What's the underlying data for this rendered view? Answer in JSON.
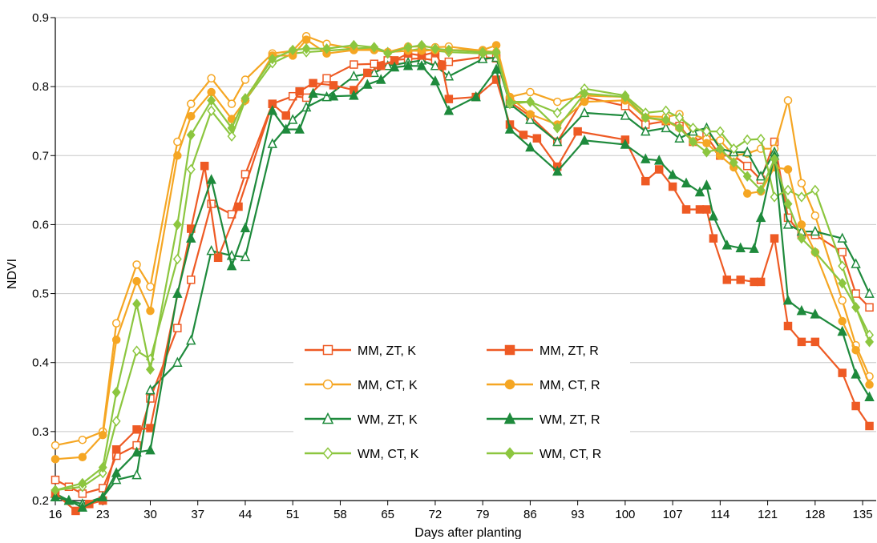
{
  "chart_data": {
    "type": "line",
    "title": "",
    "xlabel": "Days after planting",
    "ylabel": "NDVI",
    "xlim": [
      16,
      137
    ],
    "ylim": [
      0.2,
      0.9
    ],
    "xticks": [
      "16",
      "23",
      "30",
      "37",
      "44",
      "51",
      "58",
      "65",
      "72",
      "79",
      "86",
      "93",
      "100",
      "107",
      "114",
      "121",
      "128",
      "135"
    ],
    "yticks": [
      "0.2",
      "0.3",
      "0.4",
      "0.5",
      "0.6",
      "0.7",
      "0.8",
      "0.9"
    ],
    "grid": "horizontal",
    "legend_position": "center-bottom",
    "series": [
      {
        "name": "MM, ZT, K",
        "color": "#ee5a24",
        "marker": "square",
        "filled": false,
        "x": [
          16,
          18,
          20,
          23,
          25,
          28,
          30,
          34,
          36,
          39,
          42,
          44,
          48,
          51,
          53,
          56,
          60,
          63,
          65,
          68,
          70,
          72,
          74,
          79,
          81,
          83,
          86,
          90,
          94,
          100,
          103,
          106,
          108,
          110,
          112,
          114,
          116,
          118,
          120,
          122,
          124,
          126,
          128,
          132,
          134,
          136
        ],
        "y": [
          0.23,
          0.22,
          0.21,
          0.218,
          0.265,
          0.28,
          0.348,
          0.45,
          0.52,
          0.63,
          0.615,
          0.673,
          0.775,
          0.786,
          0.784,
          0.812,
          0.832,
          0.833,
          0.838,
          0.84,
          0.841,
          0.838,
          0.836,
          0.843,
          0.841,
          0.778,
          0.757,
          0.72,
          0.785,
          0.772,
          0.745,
          0.75,
          0.743,
          0.72,
          0.728,
          0.7,
          0.7,
          0.685,
          0.665,
          0.72,
          0.61,
          0.585,
          0.585,
          0.56,
          0.5,
          0.48
        ]
      },
      {
        "name": "MM, CT, K",
        "color": "#f5a623",
        "marker": "circle",
        "filled": false,
        "x": [
          16,
          20,
          23,
          25,
          28,
          30,
          34,
          36,
          39,
          42,
          44,
          48,
          51,
          53,
          56,
          60,
          63,
          65,
          68,
          70,
          72,
          74,
          79,
          81,
          83,
          86,
          90,
          94,
          100,
          103,
          106,
          108,
          110,
          112,
          114,
          116,
          118,
          120,
          122,
          124,
          126,
          128,
          132,
          134,
          136
        ],
        "y": [
          0.28,
          0.288,
          0.3,
          0.457,
          0.542,
          0.51,
          0.72,
          0.775,
          0.812,
          0.775,
          0.81,
          0.848,
          0.852,
          0.873,
          0.862,
          0.855,
          0.855,
          0.85,
          0.858,
          0.858,
          0.857,
          0.858,
          0.852,
          0.85,
          0.785,
          0.792,
          0.778,
          0.787,
          0.785,
          0.757,
          0.756,
          0.76,
          0.73,
          0.724,
          0.722,
          0.7,
          0.703,
          0.71,
          0.71,
          0.78,
          0.66,
          0.613,
          0.49,
          0.425,
          0.38
        ]
      },
      {
        "name": "WM, ZT, K",
        "color": "#1e8a3c",
        "marker": "triangle",
        "filled": false,
        "x": [
          16,
          18,
          20,
          23,
          25,
          28,
          30,
          34,
          36,
          39,
          42,
          44,
          48,
          51,
          53,
          56,
          60,
          63,
          65,
          68,
          70,
          72,
          74,
          79,
          81,
          83,
          86,
          90,
          94,
          100,
          103,
          106,
          108,
          110,
          112,
          114,
          116,
          118,
          120,
          122,
          124,
          126,
          128,
          132,
          134,
          136
        ],
        "y": [
          0.21,
          0.2,
          0.195,
          0.205,
          0.23,
          0.237,
          0.36,
          0.4,
          0.432,
          0.562,
          0.555,
          0.553,
          0.717,
          0.752,
          0.77,
          0.785,
          0.815,
          0.82,
          0.83,
          0.835,
          0.838,
          0.83,
          0.815,
          0.84,
          0.842,
          0.775,
          0.752,
          0.72,
          0.762,
          0.758,
          0.735,
          0.74,
          0.725,
          0.735,
          0.74,
          0.71,
          0.705,
          0.705,
          0.67,
          0.705,
          0.6,
          0.59,
          0.59,
          0.58,
          0.543,
          0.5
        ]
      },
      {
        "name": "WM, CT, K",
        "color": "#8cc63f",
        "marker": "diamond",
        "filled": false,
        "x": [
          16,
          20,
          23,
          25,
          28,
          30,
          34,
          36,
          39,
          42,
          44,
          48,
          51,
          53,
          56,
          60,
          63,
          65,
          68,
          70,
          72,
          74,
          79,
          81,
          83,
          86,
          90,
          94,
          100,
          103,
          106,
          108,
          110,
          112,
          114,
          116,
          118,
          120,
          122,
          124,
          126,
          128,
          132,
          134,
          136
        ],
        "y": [
          0.215,
          0.22,
          0.24,
          0.315,
          0.417,
          0.405,
          0.55,
          0.68,
          0.765,
          0.728,
          0.78,
          0.834,
          0.848,
          0.85,
          0.852,
          0.855,
          0.857,
          0.85,
          0.852,
          0.855,
          0.852,
          0.85,
          0.848,
          0.848,
          0.775,
          0.778,
          0.762,
          0.797,
          0.787,
          0.762,
          0.765,
          0.755,
          0.74,
          0.735,
          0.735,
          0.71,
          0.723,
          0.724,
          0.64,
          0.65,
          0.64,
          0.65,
          0.54,
          0.48,
          0.44
        ]
      },
      {
        "name": "MM, ZT, R",
        "color": "#ee5a24",
        "marker": "square",
        "filled": true,
        "x": [
          16,
          19,
          21,
          23,
          25,
          28,
          30,
          36,
          38,
          40,
          43,
          48,
          50,
          52,
          54,
          57,
          60,
          62,
          64,
          66,
          68,
          70,
          72,
          73,
          74,
          78,
          81,
          83,
          85,
          87,
          90,
          93,
          100,
          103,
          105,
          107,
          109,
          111,
          112,
          113,
          115,
          117,
          119,
          120,
          122,
          124,
          126,
          128,
          132,
          134,
          136
        ],
        "y": [
          0.21,
          0.185,
          0.195,
          0.2,
          0.274,
          0.303,
          0.305,
          0.594,
          0.685,
          0.552,
          0.626,
          0.775,
          0.758,
          0.793,
          0.805,
          0.802,
          0.795,
          0.82,
          0.83,
          0.838,
          0.848,
          0.845,
          0.85,
          0.83,
          0.782,
          0.785,
          0.81,
          0.745,
          0.73,
          0.725,
          0.684,
          0.735,
          0.723,
          0.663,
          0.68,
          0.655,
          0.622,
          0.622,
          0.622,
          0.58,
          0.52,
          0.52,
          0.517,
          0.517,
          0.58,
          0.453,
          0.43,
          0.43,
          0.385,
          0.337,
          0.308
        ]
      },
      {
        "name": "MM, CT, R",
        "color": "#f5a623",
        "marker": "circle",
        "filled": true,
        "x": [
          16,
          20,
          23,
          25,
          28,
          30,
          34,
          36,
          39,
          42,
          44,
          48,
          51,
          53,
          56,
          60,
          63,
          65,
          68,
          70,
          72,
          74,
          79,
          81,
          83,
          86,
          90,
          94,
          100,
          103,
          106,
          108,
          110,
          112,
          114,
          116,
          118,
          120,
          122,
          124,
          126,
          128,
          132,
          134,
          136
        ],
        "y": [
          0.26,
          0.263,
          0.295,
          0.433,
          0.518,
          0.475,
          0.7,
          0.757,
          0.792,
          0.753,
          0.78,
          0.845,
          0.845,
          0.868,
          0.848,
          0.853,
          0.853,
          0.85,
          0.852,
          0.852,
          0.853,
          0.853,
          0.853,
          0.86,
          0.785,
          0.76,
          0.745,
          0.778,
          0.78,
          0.755,
          0.75,
          0.74,
          0.72,
          0.718,
          0.7,
          0.683,
          0.645,
          0.648,
          0.683,
          0.68,
          0.6,
          0.56,
          0.46,
          0.418,
          0.368
        ]
      },
      {
        "name": "WM, ZT, R",
        "color": "#1e8a3c",
        "marker": "triangle",
        "filled": true,
        "x": [
          16,
          18,
          20,
          23,
          25,
          28,
          30,
          34,
          36,
          39,
          42,
          44,
          48,
          50,
          52,
          54,
          57,
          60,
          62,
          64,
          66,
          68,
          70,
          72,
          74,
          78,
          81,
          83,
          86,
          90,
          94,
          100,
          103,
          105,
          107,
          109,
          111,
          112,
          113,
          115,
          117,
          119,
          120,
          122,
          124,
          126,
          128,
          132,
          134,
          136
        ],
        "y": [
          0.205,
          0.2,
          0.19,
          0.205,
          0.24,
          0.27,
          0.273,
          0.5,
          0.58,
          0.665,
          0.54,
          0.595,
          0.765,
          0.738,
          0.738,
          0.79,
          0.786,
          0.787,
          0.803,
          0.81,
          0.828,
          0.83,
          0.83,
          0.808,
          0.765,
          0.785,
          0.825,
          0.738,
          0.712,
          0.677,
          0.722,
          0.716,
          0.695,
          0.693,
          0.672,
          0.66,
          0.647,
          0.657,
          0.612,
          0.57,
          0.566,
          0.565,
          0.61,
          0.7,
          0.49,
          0.475,
          0.47,
          0.445,
          0.383,
          0.35
        ]
      },
      {
        "name": "WM, CT, R",
        "color": "#8cc63f",
        "marker": "diamond",
        "filled": true,
        "x": [
          16,
          20,
          23,
          25,
          28,
          30,
          34,
          36,
          39,
          42,
          44,
          48,
          51,
          53,
          56,
          60,
          63,
          65,
          68,
          70,
          72,
          74,
          79,
          81,
          83,
          86,
          90,
          94,
          100,
          103,
          106,
          108,
          110,
          112,
          114,
          116,
          118,
          120,
          122,
          124,
          126,
          128,
          132,
          134,
          136
        ],
        "y": [
          0.215,
          0.225,
          0.248,
          0.357,
          0.485,
          0.39,
          0.6,
          0.73,
          0.78,
          0.74,
          0.783,
          0.84,
          0.853,
          0.855,
          0.855,
          0.86,
          0.857,
          0.848,
          0.857,
          0.86,
          0.855,
          0.853,
          0.85,
          0.85,
          0.778,
          0.778,
          0.74,
          0.79,
          0.785,
          0.755,
          0.752,
          0.74,
          0.72,
          0.705,
          0.71,
          0.69,
          0.67,
          0.65,
          0.695,
          0.63,
          0.58,
          0.56,
          0.515,
          0.48,
          0.43
        ]
      }
    ]
  }
}
